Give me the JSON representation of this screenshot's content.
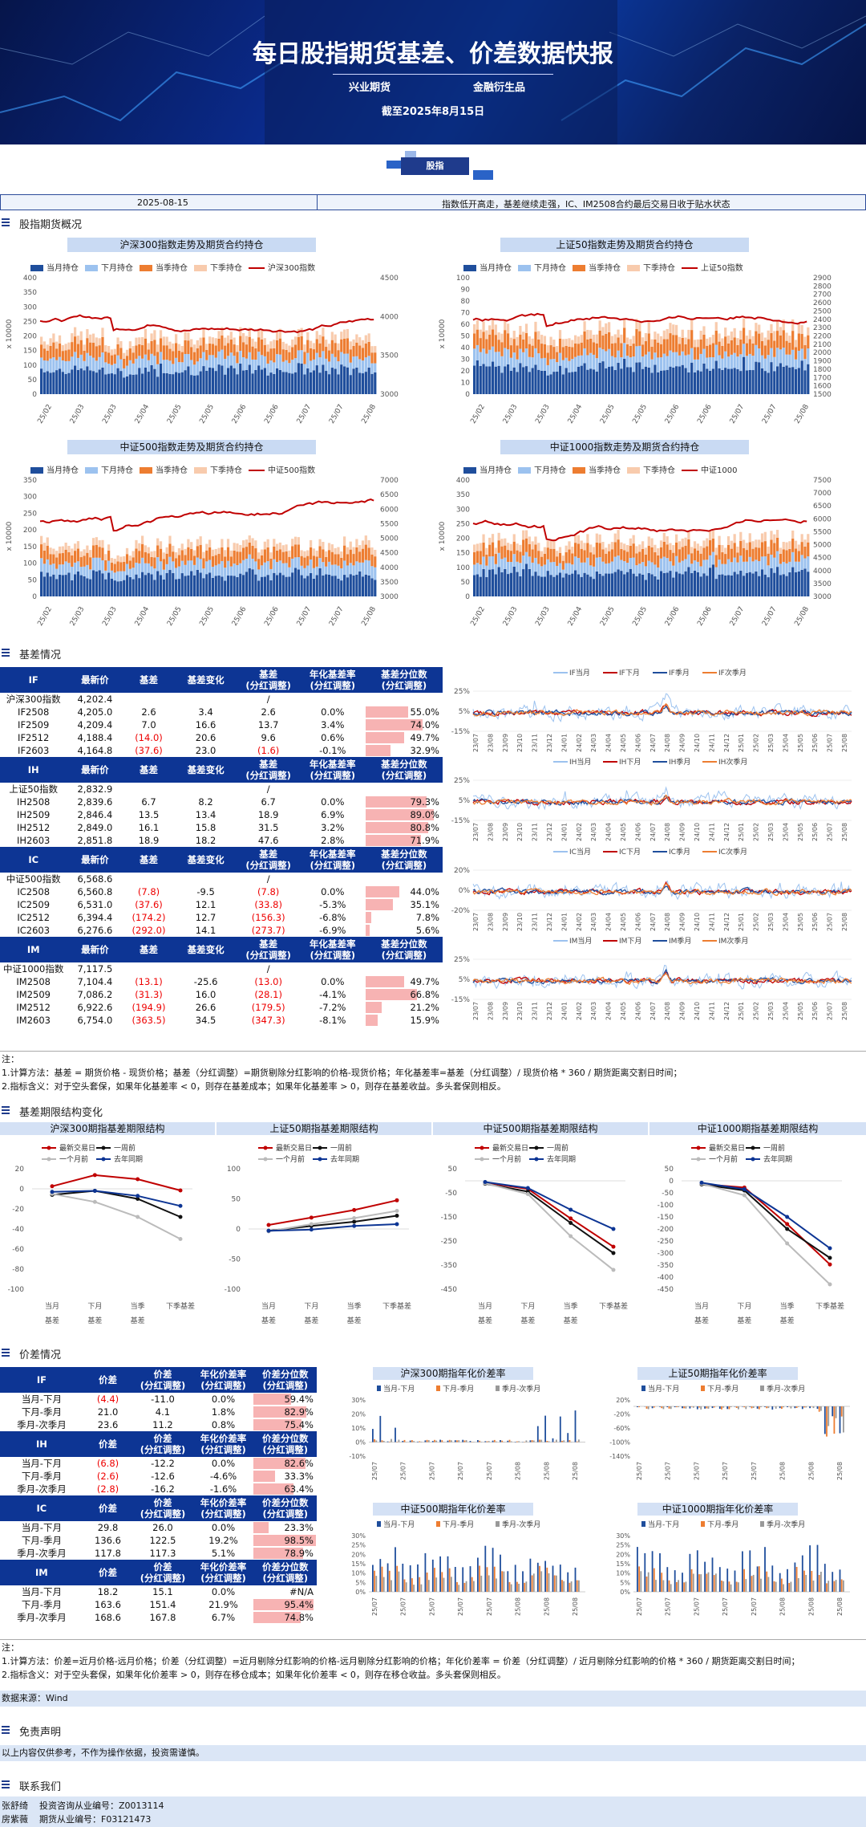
{
  "header": {
    "title": "每日股指期货基差、价差数据快报",
    "org1": "兴业期货",
    "org2": "金融衍生品",
    "as_of": "截至2025年8月15日",
    "badge": "股指"
  },
  "datebar": {
    "date": "2025-08-15",
    "summary": "指数低开高走，基差继续走强，IC、IM2508合约最后交易日收于贴水状态"
  },
  "sections": {
    "overview": "股指期货概况",
    "basis": "基差情况",
    "structure": "基差期限结构变化",
    "spread": "价差情况",
    "disclaimer": "免责声明",
    "contact": "联系我们"
  },
  "holding_charts": [
    {
      "title": "沪深300指数走势及期货合约持仓",
      "index_label": "沪深300指数",
      "ylabel": "x 10000",
      "left_axis": [
        "0",
        "50",
        "100",
        "150",
        "200",
        "250",
        "300",
        "350",
        "400"
      ],
      "right_axis": [
        "3000",
        "3500",
        "4000",
        "4500"
      ]
    },
    {
      "title": "上证50指数走势及期货合约持仓",
      "index_label": "上证50指数",
      "ylabel": "x 10000",
      "left_axis": [
        "0",
        "10",
        "20",
        "30",
        "40",
        "50",
        "60",
        "70",
        "80",
        "90",
        "100"
      ],
      "right_axis": [
        "1500",
        "1600",
        "1700",
        "1800",
        "1900",
        "2000",
        "2100",
        "2200",
        "2300",
        "2400",
        "2500",
        "2600",
        "2700",
        "2800",
        "2900"
      ]
    },
    {
      "title": "中证500指数走势及期货合约持仓",
      "index_label": "中证500指数",
      "ylabel": "x 10000",
      "left_axis": [
        "0",
        "50",
        "100",
        "150",
        "200",
        "250",
        "300",
        "350"
      ],
      "right_axis": [
        "3000",
        "3500",
        "4000",
        "4500",
        "5000",
        "5500",
        "6000",
        "6500",
        "7000"
      ]
    },
    {
      "title": "中证1000指数走势及期货合约持仓",
      "index_label": "中证1000",
      "ylabel": "x 10000",
      "left_axis": [
        "0",
        "50",
        "100",
        "150",
        "200",
        "250",
        "300",
        "350",
        "400"
      ],
      "right_axis": [
        "3000",
        "3500",
        "4000",
        "4500",
        "5000",
        "5500",
        "6000",
        "6500",
        "7000",
        "7500"
      ]
    }
  ],
  "holding_legend": [
    "当月持仓",
    "下月持仓",
    "当季持仓",
    "下季持仓"
  ],
  "holding_xticks": [
    "25/02",
    "25/03",
    "25/03",
    "25/04",
    "25/05",
    "25/05",
    "25/06",
    "25/06",
    "25/07",
    "25/07",
    "25/08"
  ],
  "basis_table": {
    "headers": [
      "最新价",
      "基差",
      "基差变化",
      "基差\n(分红调整)",
      "年化基差率\n(分红调整)",
      "基差分位数\n(分红调整)"
    ],
    "groups": [
      {
        "code": "IF",
        "index_name": "沪深300指数",
        "index_price": "4,202.4",
        "index_dash": "/",
        "rows": [
          {
            "name": "IF2508",
            "price": "4,205.0",
            "basis": "2.6",
            "chg": "3.4",
            "adj": "2.6",
            "ann": "0.0%",
            "pct": "55.0%",
            "pv": 0.55,
            "bn": false,
            "an": false
          },
          {
            "name": "IF2509",
            "price": "4,209.4",
            "basis": "7.0",
            "chg": "16.6",
            "adj": "13.7",
            "ann": "3.4%",
            "pct": "74.0%",
            "pv": 0.74,
            "bn": false,
            "an": false
          },
          {
            "name": "IF2512",
            "price": "4,188.4",
            "basis": "(14.0)",
            "chg": "20.6",
            "adj": "9.6",
            "ann": "0.6%",
            "pct": "49.7%",
            "pv": 0.497,
            "bn": true,
            "an": false
          },
          {
            "name": "IF2603",
            "price": "4,164.8",
            "basis": "(37.6)",
            "chg": "23.0",
            "adj": "(1.6)",
            "ann": "-0.1%",
            "pct": "32.9%",
            "pv": 0.329,
            "bn": true,
            "an": true
          }
        ]
      },
      {
        "code": "IH",
        "index_name": "上证50指数",
        "index_price": "2,832.9",
        "index_dash": "/",
        "rows": [
          {
            "name": "IH2508",
            "price": "2,839.6",
            "basis": "6.7",
            "chg": "8.2",
            "adj": "6.7",
            "ann": "0.0%",
            "pct": "79.3%",
            "pv": 0.793,
            "bn": false,
            "an": false
          },
          {
            "name": "IH2509",
            "price": "2,846.4",
            "basis": "13.5",
            "chg": "13.4",
            "adj": "18.9",
            "ann": "6.9%",
            "pct": "89.0%",
            "pv": 0.89,
            "bn": false,
            "an": false
          },
          {
            "name": "IH2512",
            "price": "2,849.0",
            "basis": "16.1",
            "chg": "15.8",
            "adj": "31.5",
            "ann": "3.2%",
            "pct": "80.8%",
            "pv": 0.808,
            "bn": false,
            "an": false
          },
          {
            "name": "IH2603",
            "price": "2,851.8",
            "basis": "18.9",
            "chg": "18.2",
            "adj": "47.6",
            "ann": "2.8%",
            "pct": "71.9%",
            "pv": 0.719,
            "bn": false,
            "an": false
          }
        ]
      },
      {
        "code": "IC",
        "index_name": "中证500指数",
        "index_price": "6,568.6",
        "index_dash": "/",
        "rows": [
          {
            "name": "IC2508",
            "price": "6,560.8",
            "basis": "(7.8)",
            "chg": "-9.5",
            "adj": "(7.8)",
            "ann": "0.0%",
            "pct": "44.0%",
            "pv": 0.44,
            "bn": true,
            "an": true
          },
          {
            "name": "IC2509",
            "price": "6,531.0",
            "basis": "(37.6)",
            "chg": "12.1",
            "adj": "(33.8)",
            "ann": "-5.3%",
            "pct": "35.1%",
            "pv": 0.351,
            "bn": true,
            "an": true
          },
          {
            "name": "IC2512",
            "price": "6,394.4",
            "basis": "(174.2)",
            "chg": "12.7",
            "adj": "(156.3)",
            "ann": "-6.8%",
            "pct": "7.8%",
            "pv": 0.078,
            "bn": true,
            "an": true
          },
          {
            "name": "IC2603",
            "price": "6,276.6",
            "basis": "(292.0)",
            "chg": "14.1",
            "adj": "(273.7)",
            "ann": "-6.9%",
            "pct": "5.6%",
            "pv": 0.056,
            "bn": true,
            "an": true
          }
        ]
      },
      {
        "code": "IM",
        "index_name": "中证1000指数",
        "index_price": "7,117.5",
        "index_dash": "/",
        "rows": [
          {
            "name": "IM2508",
            "price": "7,104.4",
            "basis": "(13.1)",
            "chg": "-25.6",
            "adj": "(13.0)",
            "ann": "0.0%",
            "pct": "49.7%",
            "pv": 0.497,
            "bn": true,
            "an": true
          },
          {
            "name": "IM2509",
            "price": "7,086.2",
            "basis": "(31.3)",
            "chg": "16.0",
            "adj": "(28.1)",
            "ann": "-4.1%",
            "pct": "66.8%",
            "pv": 0.668,
            "bn": true,
            "an": true
          },
          {
            "name": "IM2512",
            "price": "6,922.6",
            "basis": "(194.9)",
            "chg": "26.6",
            "adj": "(179.5)",
            "ann": "-7.2%",
            "pct": "21.2%",
            "pv": 0.212,
            "bn": true,
            "an": true
          },
          {
            "name": "IM2603",
            "price": "6,754.0",
            "basis": "(363.5)",
            "chg": "34.5",
            "adj": "(347.3)",
            "ann": "-8.1%",
            "pct": "15.9%",
            "pv": 0.159,
            "bn": true,
            "an": true
          }
        ]
      }
    ]
  },
  "basis_trend_charts": [
    {
      "legend": [
        "IF当月",
        "IF下月",
        "IF季月",
        "IF次季月"
      ],
      "yticks": [
        "25%",
        "5%",
        "-15%"
      ]
    },
    {
      "legend": [
        "IH当月",
        "IH下月",
        "IH季月",
        "IH次季月"
      ],
      "yticks": [
        "25%",
        "5%",
        "-15%"
      ]
    },
    {
      "legend": [
        "IC当月",
        "IC下月",
        "IC季月",
        "IC次季月"
      ],
      "yticks": [
        "20%",
        "0%",
        "-20%"
      ]
    },
    {
      "legend": [
        "IM当月",
        "IM下月",
        "IM季月",
        "IM次季月"
      ],
      "yticks": [
        "25%",
        "5%",
        "-15%"
      ]
    }
  ],
  "basis_trend_xticks": [
    "23/07",
    "23/08",
    "23/09",
    "23/10",
    "23/11",
    "23/12",
    "24/01",
    "24/02",
    "24/03",
    "24/04",
    "24/05",
    "24/06",
    "24/07",
    "24/08",
    "24/09",
    "24/10",
    "24/11",
    "24/12",
    "25/01",
    "25/02",
    "25/03",
    "25/04",
    "25/05",
    "25/06",
    "25/07",
    "25/08"
  ],
  "basis_notes": [
    "注：",
    "1.计算方法：基差 = 期货价格 - 现货价格；基差（分红调整）=期货剔除分红影响的价格-现货价格；年化基差率=基差（分红调整）/ 现货价格 * 360 / 期货距离交割日时间；",
    "2.指标含义：对于空头套保，如果年化基差率 < 0，则存在基差成本；如果年化基差率 > 0，则存在基差收益。多头套保则相反。"
  ],
  "term_structure": {
    "legend": [
      "最新交易日",
      "一周前",
      "一个月前",
      "去年同期"
    ],
    "categories": [
      "当月\n基差",
      "下月\n基差",
      "当季\n基差",
      "下季基差"
    ],
    "charts": [
      {
        "title": "沪深300期指基差期限结构",
        "ylim": [
          -100,
          20
        ],
        "yticks": [
          "20",
          "0",
          "-20",
          "-40",
          "-60",
          "-80",
          "-100"
        ],
        "series": [
          [
            2.6,
            13.7,
            9.6,
            -1.6
          ],
          [
            -6,
            -2,
            -10,
            -28
          ],
          [
            -5,
            -13,
            -28,
            -50
          ],
          [
            -3,
            -2,
            -7,
            -17
          ]
        ]
      },
      {
        "title": "上证50期指基差期限结构",
        "ylim": [
          -100,
          100
        ],
        "yticks": [
          "100",
          "50",
          "0",
          "-50",
          "-100"
        ],
        "series": [
          [
            6.7,
            18.9,
            31.5,
            47.6
          ],
          [
            -3,
            5,
            12,
            22
          ],
          [
            -4,
            8,
            18,
            30
          ],
          [
            -3,
            -1,
            5,
            8
          ]
        ]
      },
      {
        "title": "中证500期指基差期限结构",
        "ylim": [
          -450,
          50
        ],
        "yticks": [
          "50",
          "-50",
          "-150",
          "-250",
          "-350",
          "-450"
        ],
        "series": [
          [
            -7.8,
            -33.8,
            -156.3,
            -273.7
          ],
          [
            -12,
            -45,
            -175,
            -300
          ],
          [
            -10,
            -55,
            -230,
            -370
          ],
          [
            -5,
            -30,
            -120,
            -200
          ]
        ]
      },
      {
        "title": "中证1000期指基差期限结构",
        "ylim": [
          -450,
          50
        ],
        "yticks": [
          "50",
          "0",
          "-50",
          "-100",
          "-150",
          "-200",
          "-250",
          "-300",
          "-350",
          "-400",
          "-450"
        ],
        "series": [
          [
            -13.0,
            -28.1,
            -179.5,
            -347.3
          ],
          [
            -15,
            -40,
            -200,
            -320
          ],
          [
            -12,
            -60,
            -260,
            -430
          ],
          [
            -8,
            -35,
            -150,
            -280
          ]
        ]
      }
    ]
  },
  "spread_table": {
    "headers": [
      "价差",
      "价差\n(分红调整)",
      "年化价差率\n(分红调整)",
      "价差分位数\n(分红调整)"
    ],
    "groups": [
      {
        "code": "IF",
        "rows": [
          {
            "name": "当月-下月",
            "v": "(4.4)",
            "adj": "-11.0",
            "ann": "0.0%",
            "pct": "59.4%",
            "pv": 0.594,
            "neg": true
          },
          {
            "name": "下月-季月",
            "v": "21.0",
            "adj": "4.1",
            "ann": "1.8%",
            "pct": "82.9%",
            "pv": 0.829,
            "neg": false
          },
          {
            "name": "季月-次季月",
            "v": "23.6",
            "adj": "11.2",
            "ann": "0.8%",
            "pct": "75.4%",
            "pv": 0.754,
            "neg": false
          }
        ]
      },
      {
        "code": "IH",
        "rows": [
          {
            "name": "当月-下月",
            "v": "(6.8)",
            "adj": "-12.2",
            "ann": "0.0%",
            "pct": "82.6%",
            "pv": 0.826,
            "neg": true
          },
          {
            "name": "下月-季月",
            "v": "(2.6)",
            "adj": "-12.6",
            "ann": "-4.6%",
            "pct": "33.3%",
            "pv": 0.333,
            "neg": true
          },
          {
            "name": "季月-次季月",
            "v": "(2.8)",
            "adj": "-16.2",
            "ann": "-1.6%",
            "pct": "63.4%",
            "pv": 0.634,
            "neg": true
          }
        ]
      },
      {
        "code": "IC",
        "rows": [
          {
            "name": "当月-下月",
            "v": "29.8",
            "adj": "26.0",
            "ann": "0.0%",
            "pct": "23.3%",
            "pv": 0.233,
            "neg": false
          },
          {
            "name": "下月-季月",
            "v": "136.6",
            "adj": "122.5",
            "ann": "19.2%",
            "pct": "98.5%",
            "pv": 0.985,
            "neg": false
          },
          {
            "name": "季月-次季月",
            "v": "117.8",
            "adj": "117.3",
            "ann": "5.1%",
            "pct": "78.9%",
            "pv": 0.789,
            "neg": false
          }
        ]
      },
      {
        "code": "IM",
        "rows": [
          {
            "name": "当月-下月",
            "v": "18.2",
            "adj": "15.1",
            "ann": "0.0%",
            "pct": "#N/A",
            "pv": 0,
            "neg": false
          },
          {
            "name": "下月-季月",
            "v": "163.6",
            "adj": "151.4",
            "ann": "21.9%",
            "pct": "95.4%",
            "pv": 0.954,
            "neg": false
          },
          {
            "name": "季月-次季月",
            "v": "168.6",
            "adj": "167.8",
            "ann": "6.7%",
            "pct": "74.8%",
            "pv": 0.748,
            "neg": false
          }
        ]
      }
    ]
  },
  "spread_charts": [
    {
      "title": "沪深300期指年化价差率",
      "yticks": [
        "30%",
        "20%",
        "10%",
        "0%",
        "-10%"
      ]
    },
    {
      "title": "上证50期指年化价差率",
      "yticks": [
        "20%",
        "-20%",
        "-60%",
        "-100%",
        "-140%"
      ]
    },
    {
      "title": "中证500期指年化价差率",
      "yticks": [
        "30%",
        "25%",
        "20%",
        "15%",
        "10%",
        "5%",
        "0%"
      ]
    },
    {
      "title": "中证1000期指年化价差率",
      "yticks": [
        "30%",
        "25%",
        "20%",
        "15%",
        "10%",
        "5%",
        "0%"
      ]
    }
  ],
  "spread_legend": [
    "当月-下月",
    "下月-季月",
    "季月-次季月"
  ],
  "spread_xticks": [
    "25/07",
    "25/07",
    "25/07",
    "25/07",
    "25/07",
    "25/08",
    "25/08",
    "25/08"
  ],
  "spread_notes": [
    "注：",
    "1.计算方法：价差=近月价格-远月价格；价差（分红调整）=近月剔除分红影响的价格-远月剔除分红影响的价格；年化价差率 = 价差（分红调整）/ 近月剔除分红影响的价格 * 360 / 期货距离交割日时间；",
    "2.指标含义：对于空头套保，如果年化价差率 > 0，则存在移仓成本；如果年化价差率 < 0，则存在移仓收益。多头套保则相反。"
  ],
  "source": "数据来源：Wind",
  "disclaimer_text": "以上内容仅供参考，不作为操作依据，投资需谨慎。",
  "contacts": [
    {
      "name": "张舒绮",
      "label": "投资咨询从业编号：",
      "id": "Z0013114"
    },
    {
      "name": "房紫薇",
      "label": "期货从业编号：",
      "id": "F03121473"
    }
  ],
  "colors": {
    "navy": "#0d3594",
    "band": "#c9daf3",
    "red": "#c00000",
    "light_blue": "#9cc2ef",
    "orange": "#ed7d31",
    "peach": "#f8cbad",
    "dark_blue": "#1f4e9c"
  }
}
